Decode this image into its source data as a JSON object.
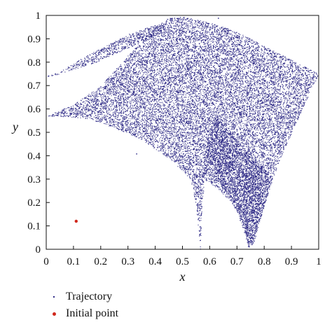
{
  "chart_data": {
    "type": "scatter",
    "title": "",
    "xlabel": "x",
    "ylabel": "y",
    "xlim": [
      0,
      1
    ],
    "ylim": [
      0,
      1
    ],
    "xticks": [
      "0",
      "0.1",
      "0.2",
      "0.3",
      "0.4",
      "0.5",
      "0.6",
      "0.7",
      "0.8",
      "0.9",
      "1"
    ],
    "yticks": [
      "0",
      "0.1",
      "0.2",
      "0.3",
      "0.4",
      "0.5",
      "0.6",
      "0.7",
      "0.8",
      "0.9",
      "1"
    ],
    "grid": false,
    "legend_placement": "bottom-left, below axes",
    "series": [
      {
        "name": "Trajectory",
        "color": "#2e2a86",
        "marker": "tiny-dot",
        "outline_regions": [
          {
            "label": "main dome",
            "polygon": [
              [
                0.0,
                0.57
              ],
              [
                0.1,
                0.62
              ],
              [
                0.2,
                0.7
              ],
              [
                0.3,
                0.83
              ],
              [
                0.4,
                0.95
              ],
              [
                0.45,
                0.99
              ],
              [
                0.5,
                0.995
              ],
              [
                0.6,
                0.97
              ],
              [
                0.7,
                0.93
              ],
              [
                0.8,
                0.87
              ],
              [
                0.9,
                0.81
              ],
              [
                1.0,
                0.75
              ],
              [
                0.97,
                0.68
              ],
              [
                0.92,
                0.55
              ],
              [
                0.87,
                0.42
              ],
              [
                0.83,
                0.3
              ],
              [
                0.79,
                0.15
              ],
              [
                0.76,
                0.04
              ],
              [
                0.74,
                0.0
              ],
              [
                0.73,
                0.06
              ],
              [
                0.7,
                0.16
              ],
              [
                0.66,
                0.24
              ],
              [
                0.62,
                0.32
              ],
              [
                0.6,
                0.38
              ],
              [
                0.58,
                0.3
              ],
              [
                0.57,
                0.16
              ],
              [
                0.565,
                0.0
              ],
              [
                0.56,
                0.06
              ],
              [
                0.55,
                0.18
              ],
              [
                0.53,
                0.3
              ],
              [
                0.45,
                0.39
              ],
              [
                0.35,
                0.47
              ],
              [
                0.25,
                0.52
              ],
              [
                0.15,
                0.56
              ],
              [
                0.05,
                0.57
              ]
            ]
          },
          {
            "label": "upper arc",
            "polygon": [
              [
                0.0,
                0.74
              ],
              [
                0.05,
                0.76
              ],
              [
                0.12,
                0.81
              ],
              [
                0.2,
                0.86
              ],
              [
                0.3,
                0.92
              ],
              [
                0.4,
                0.96
              ],
              [
                0.45,
                0.97
              ],
              [
                0.41,
                0.92
              ],
              [
                0.3,
                0.86
              ],
              [
                0.22,
                0.82
              ],
              [
                0.18,
                0.8
              ],
              [
                0.1,
                0.77
              ],
              [
                0.02,
                0.74
              ]
            ]
          },
          {
            "label": "lower right lobe",
            "polygon": [
              [
                0.57,
                0.31
              ],
              [
                0.63,
                0.26
              ],
              [
                0.68,
                0.2
              ],
              [
                0.72,
                0.12
              ],
              [
                0.74,
                0.02
              ],
              [
                0.76,
                0.02
              ],
              [
                0.79,
                0.15
              ],
              [
                0.83,
                0.3
              ],
              [
                0.79,
                0.36
              ],
              [
                0.72,
                0.44
              ],
              [
                0.66,
                0.52
              ],
              [
                0.62,
                0.58
              ],
              [
                0.6,
                0.5
              ],
              [
                0.58,
                0.4
              ]
            ]
          }
        ],
        "stray_points": [
          [
            0.33,
            0.41
          ],
          [
            0.63,
            0.99
          ]
        ]
      },
      {
        "name": "Initial point",
        "color": "#d0281c",
        "marker": "dot",
        "points": [
          [
            0.11,
            0.12
          ]
        ]
      }
    ]
  }
}
